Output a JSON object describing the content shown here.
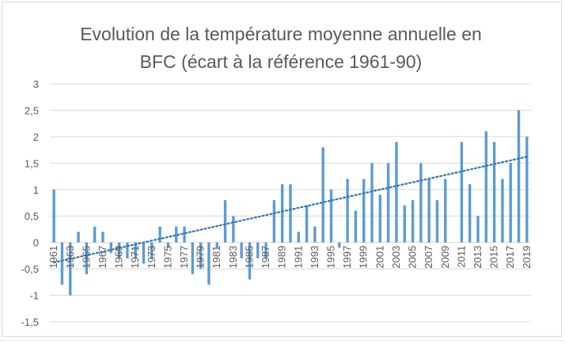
{
  "chart_data": {
    "type": "bar",
    "title_line1": "Evolution de la température moyenne annuelle en",
    "title_line2": "BFC (écart à la référence 1961-90)",
    "xlabel": "",
    "ylabel": "",
    "ylim": [
      -1.5,
      3
    ],
    "yticks": [
      3,
      2.5,
      2,
      1.5,
      1,
      0.5,
      0,
      -0.5,
      -1,
      -1.5
    ],
    "ytick_labels": [
      "3",
      "2,5",
      "2",
      "1,5",
      "1",
      "0,5",
      "0",
      "-0,5",
      "-1",
      "-1,5"
    ],
    "categories": [
      1961,
      1962,
      1963,
      1964,
      1965,
      1966,
      1967,
      1968,
      1969,
      1970,
      1971,
      1972,
      1973,
      1974,
      1975,
      1976,
      1977,
      1978,
      1979,
      1980,
      1981,
      1982,
      1983,
      1984,
      1985,
      1986,
      1987,
      1988,
      1989,
      1990,
      1991,
      1992,
      1993,
      1994,
      1995,
      1996,
      1997,
      1998,
      1999,
      2000,
      2001,
      2002,
      2003,
      2004,
      2005,
      2006,
      2007,
      2008,
      2009,
      2010,
      2011,
      2012,
      2013,
      2014,
      2015,
      2016,
      2017,
      2018,
      2019
    ],
    "xtick_labels": [
      "1961",
      "1963",
      "1965",
      "1967",
      "1969",
      "1971",
      "1973",
      "1975",
      "1977",
      "1979",
      "1981",
      "1983",
      "1985",
      "1987",
      "1989",
      "1991",
      "1993",
      "1995",
      "1997",
      "1999",
      "2001",
      "2003",
      "2005",
      "2007",
      "2009",
      "2011",
      "2013",
      "2015",
      "2017",
      "2019"
    ],
    "values": [
      1.0,
      -0.8,
      -1.0,
      0.2,
      -0.6,
      0.3,
      0.2,
      -0.2,
      -0.3,
      -0.3,
      -0.3,
      -0.4,
      -0.3,
      0.3,
      -0.1,
      0.3,
      0.3,
      -0.6,
      -0.5,
      -0.8,
      -0.1,
      0.8,
      0.5,
      -0.3,
      -0.7,
      -0.3,
      -0.3,
      0.8,
      1.1,
      1.1,
      0.2,
      0.7,
      0.3,
      1.8,
      1.0,
      -0.1,
      1.2,
      0.6,
      1.2,
      1.5,
      0.9,
      1.5,
      1.9,
      0.7,
      0.8,
      1.5,
      1.2,
      0.8,
      1.2,
      0.0,
      1.9,
      1.1,
      0.5,
      2.1,
      1.9,
      1.2,
      1.5,
      2.5,
      2.0
    ],
    "trendline": {
      "type": "linear",
      "start": -0.38,
      "end": 1.62
    },
    "grid": true,
    "colors": {
      "bar": "#5b9bd5",
      "trend": "#2e75b6",
      "grid": "#d9d9d9",
      "text": "#595959"
    }
  }
}
